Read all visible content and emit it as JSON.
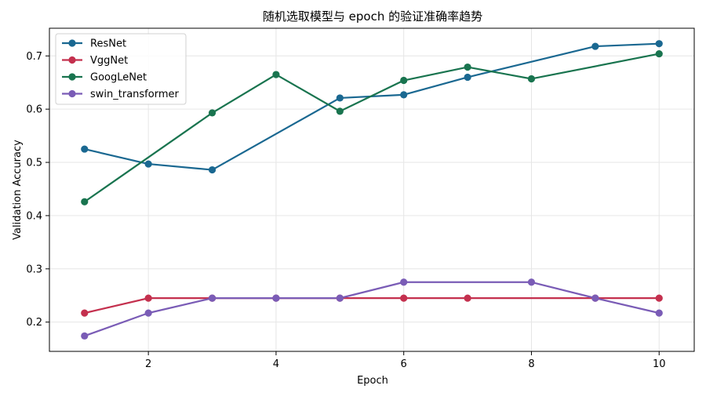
{
  "chart_data": {
    "type": "line",
    "title": "随机选取模型与 epoch 的验证准确率趋势",
    "xlabel": "Epoch",
    "ylabel": "Validation Accuracy",
    "xlim": [
      0.45,
      10.55
    ],
    "ylim": [
      0.145,
      0.752
    ],
    "x_ticks": [
      2,
      4,
      6,
      8,
      10
    ],
    "y_ticks": [
      0.2,
      0.3,
      0.4,
      0.5,
      0.6,
      0.7
    ],
    "x_tick_labels": [
      "2",
      "4",
      "6",
      "8",
      "10"
    ],
    "y_tick_labels": [
      "0.2",
      "0.3",
      "0.4",
      "0.5",
      "0.6",
      "0.7"
    ],
    "grid": true,
    "legend_position": "top-left",
    "x": [
      1,
      2,
      3,
      4,
      5,
      6,
      7,
      8,
      9,
      10
    ],
    "series": [
      {
        "name": "ResNet",
        "color": "#1a6891",
        "values": [
          0.525,
          0.497,
          0.486,
          null,
          0.621,
          0.627,
          0.66,
          null,
          0.718,
          0.723
        ]
      },
      {
        "name": "VggNet",
        "color": "#c4304e",
        "values": [
          0.217,
          0.245,
          0.245,
          0.245,
          0.245,
          0.245,
          0.245,
          null,
          0.245,
          0.245
        ]
      },
      {
        "name": "GoogLeNet",
        "color": "#19744f",
        "values": [
          0.426,
          null,
          0.593,
          0.665,
          0.596,
          0.654,
          0.679,
          0.657,
          null,
          0.704
        ]
      },
      {
        "name": "swin_transformer",
        "color": "#7a5cb6",
        "values": [
          0.174,
          0.217,
          0.245,
          0.245,
          0.245,
          0.275,
          null,
          0.275,
          0.245,
          0.217
        ]
      }
    ]
  }
}
